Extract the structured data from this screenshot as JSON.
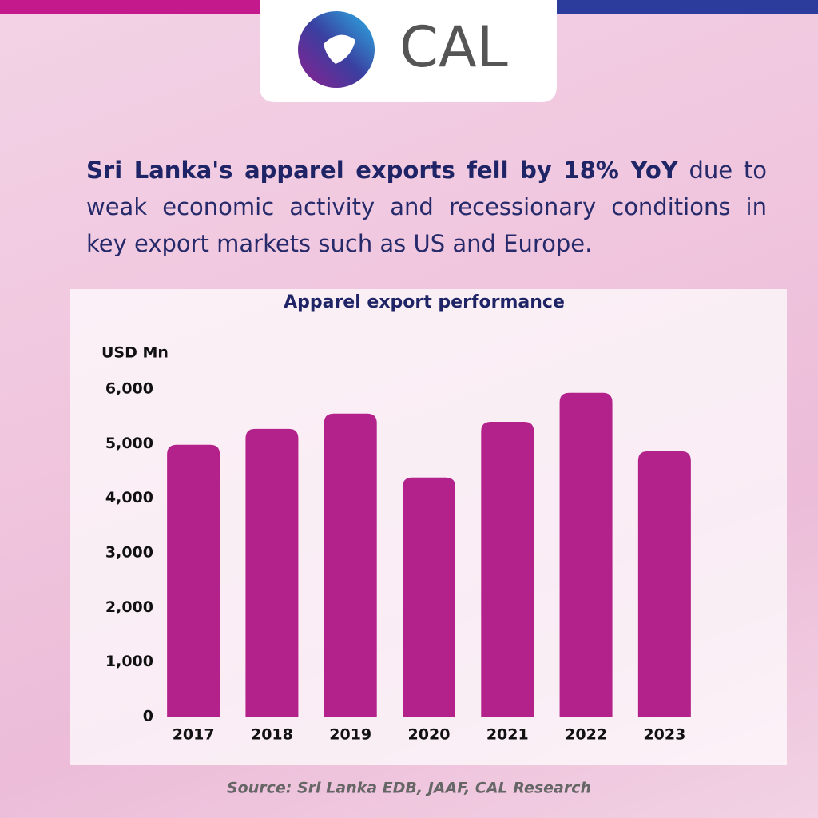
{
  "logo": "CAL",
  "headline": {
    "bold": "Sri Lanka's apparel exports fell by 18% YoY",
    "text": "due to weak economic activity and recessionary conditions in key export markets such as US and Europe."
  },
  "chart_data": {
    "type": "bar",
    "title": "Apparel export performance",
    "y_label": "USD Mn",
    "categories": [
      "2017",
      "2018",
      "2019",
      "2020",
      "2021",
      "2022",
      "2023"
    ],
    "values": [
      4980,
      5270,
      5550,
      4380,
      5400,
      5930,
      4860
    ],
    "color": "#b3218a",
    "ylim": [
      0,
      6000
    ],
    "yticks": [
      0,
      {
        "value": 1000,
        "label": "1,000"
      },
      {
        "value": 2000,
        "label": "2,000"
      },
      {
        "value": 3000,
        "label": "3,000"
      },
      {
        "value": 4000,
        "label": "4,000"
      },
      {
        "value": 5000,
        "label": "5,000"
      },
      {
        "value": 6000,
        "label": "6,000"
      }
    ],
    "grid": false,
    "source": "Source: Sri Lanka EDB, JAAF, CAL Research"
  }
}
